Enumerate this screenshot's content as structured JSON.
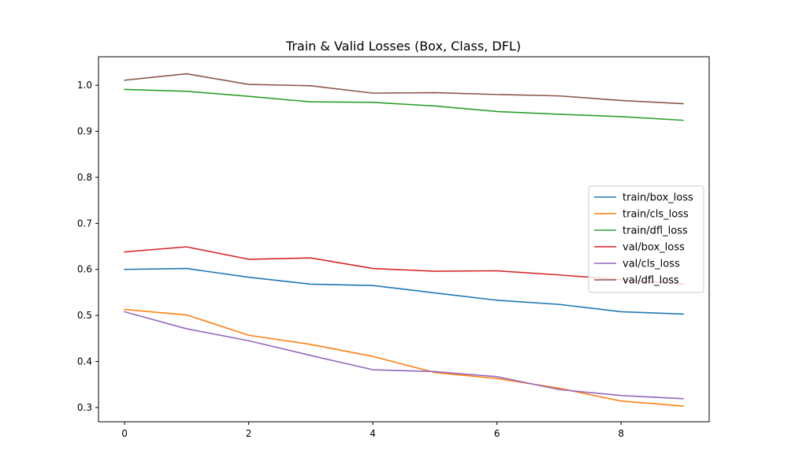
{
  "chart_data": {
    "type": "line",
    "title": "Train & Valid Losses (Box, Class, DFL)",
    "xlabel": "",
    "ylabel": "",
    "x": [
      0,
      1,
      2,
      3,
      4,
      5,
      6,
      7,
      8,
      9
    ],
    "xlim": [
      -0.42,
      9.42
    ],
    "ylim": [
      0.269,
      1.062
    ],
    "xticks": [
      0,
      2,
      4,
      6,
      8
    ],
    "yticks": [
      0.3,
      0.4,
      0.5,
      0.6,
      0.7,
      0.8,
      0.9,
      1.0
    ],
    "xtick_labels": [
      "0",
      "2",
      "4",
      "6",
      "8"
    ],
    "ytick_labels": [
      "0.3",
      "0.4",
      "0.5",
      "0.6",
      "0.7",
      "0.8",
      "0.9",
      "1.0"
    ],
    "grid": false,
    "legend_position": "center-right",
    "series": [
      {
        "name": "train/box_loss",
        "color": "#1f77b4",
        "values": [
          0.6,
          0.602,
          0.583,
          0.568,
          0.565,
          0.549,
          0.533,
          0.524,
          0.508,
          0.503
        ]
      },
      {
        "name": "train/cls_loss",
        "color": "#ff7f0e",
        "values": [
          0.513,
          0.501,
          0.457,
          0.437,
          0.411,
          0.376,
          0.363,
          0.342,
          0.314,
          0.303
        ]
      },
      {
        "name": "train/dfl_loss",
        "color": "#2ca02c",
        "values": [
          0.991,
          0.987,
          0.976,
          0.964,
          0.963,
          0.955,
          0.943,
          0.937,
          0.932,
          0.924
        ]
      },
      {
        "name": "val/box_loss",
        "color": "#d62728",
        "values": [
          0.638,
          0.649,
          0.622,
          0.625,
          0.602,
          0.596,
          0.597,
          0.588,
          0.578,
          0.568
        ]
      },
      {
        "name": "val/cls_loss",
        "color": "#9467bd",
        "values": [
          0.508,
          0.471,
          0.445,
          0.413,
          0.382,
          0.378,
          0.367,
          0.339,
          0.326,
          0.319
        ]
      },
      {
        "name": "val/dfl_loss",
        "color": "#8c564b",
        "values": [
          1.011,
          1.025,
          1.002,
          0.999,
          0.983,
          0.984,
          0.98,
          0.977,
          0.967,
          0.96
        ]
      }
    ]
  }
}
